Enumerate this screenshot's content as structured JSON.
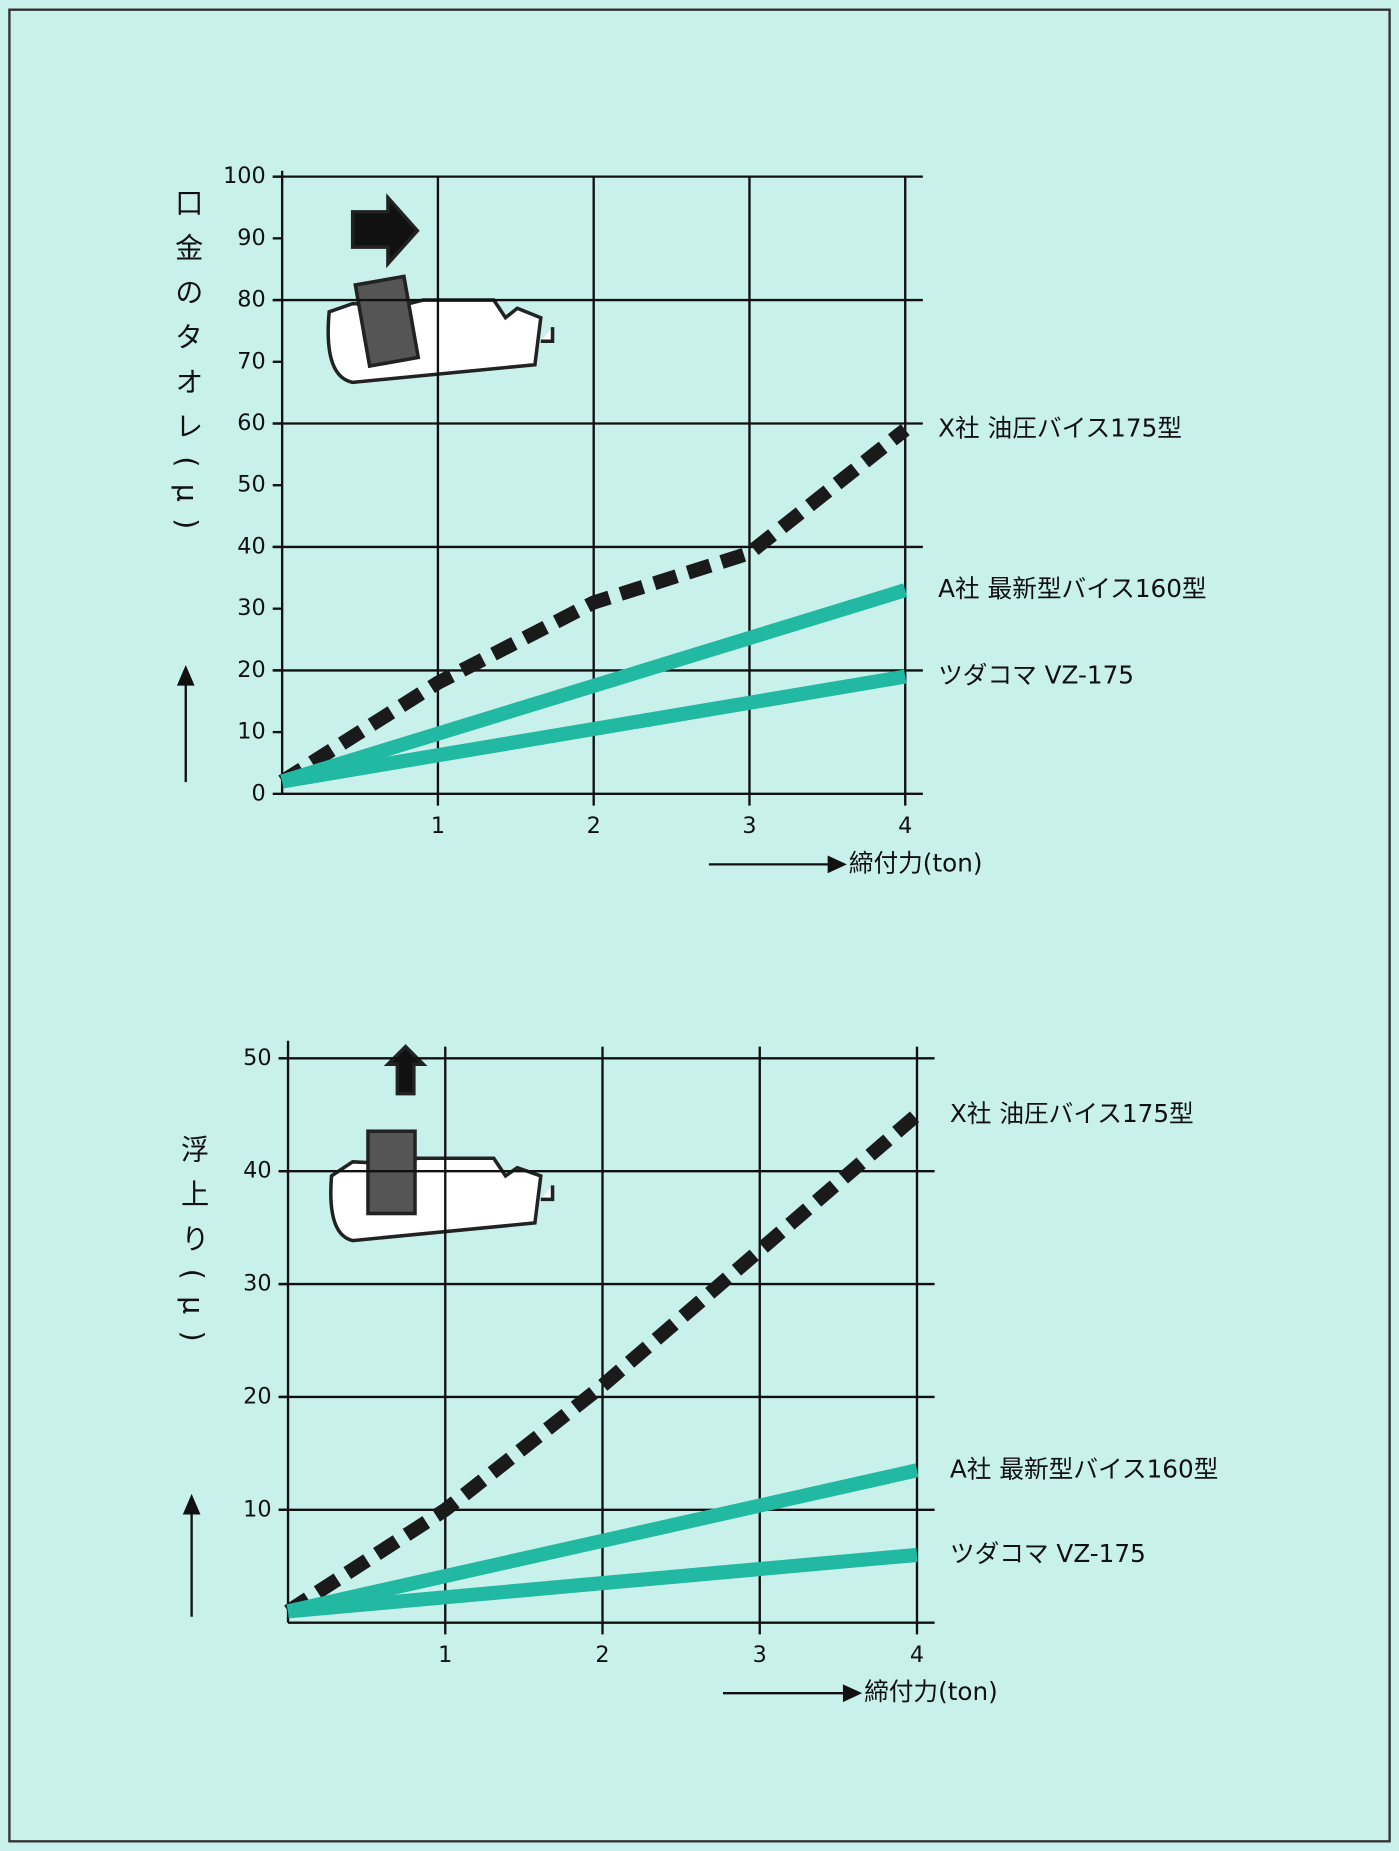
{
  "chart_data": [
    {
      "type": "line",
      "y_label": "口金のタオレ(μ)",
      "x_label": "締付力(ton)",
      "x": [
        0,
        1,
        2,
        3,
        4
      ],
      "xlim": [
        0,
        4
      ],
      "xticks": [
        1,
        2,
        3,
        4
      ],
      "ylim": [
        0,
        100
      ],
      "yticks": [
        0,
        10,
        20,
        30,
        40,
        50,
        60,
        70,
        80,
        90,
        100
      ],
      "series": [
        {
          "name": "X社 油圧バイス175型",
          "color": "#1a1a1a",
          "style": "dashed",
          "values": [
            2,
            18,
            31,
            39,
            59
          ]
        },
        {
          "name": "A社 最新型バイス160型",
          "color": "#22b9a2",
          "style": "solid",
          "values": [
            2,
            null,
            null,
            null,
            33
          ]
        },
        {
          "name": "ツダコマ VZ-175",
          "color": "#22b9a2",
          "style": "solid",
          "values": [
            2,
            null,
            null,
            null,
            19
          ]
        }
      ]
    },
    {
      "type": "line",
      "y_label": "浮上り(μ)",
      "x_label": "締付力(ton)",
      "x": [
        0,
        1,
        2,
        3,
        4
      ],
      "xlim": [
        0,
        4
      ],
      "xticks": [
        1,
        2,
        3,
        4
      ],
      "ylim": [
        0,
        50
      ],
      "yticks": [
        10,
        20,
        30,
        40,
        50
      ],
      "series": [
        {
          "name": "X社 油圧バイス175型",
          "color": "#1a1a1a",
          "style": "dashed",
          "values": [
            1,
            10,
            21,
            33,
            45
          ]
        },
        {
          "name": "A社 最新型バイス160型",
          "color": "#22b9a2",
          "style": "solid",
          "values": [
            1,
            null,
            null,
            null,
            13.5
          ]
        },
        {
          "name": "ツダコマ VZ-175",
          "color": "#22b9a2",
          "style": "solid",
          "values": [
            1,
            null,
            null,
            null,
            6
          ]
        }
      ]
    }
  ]
}
